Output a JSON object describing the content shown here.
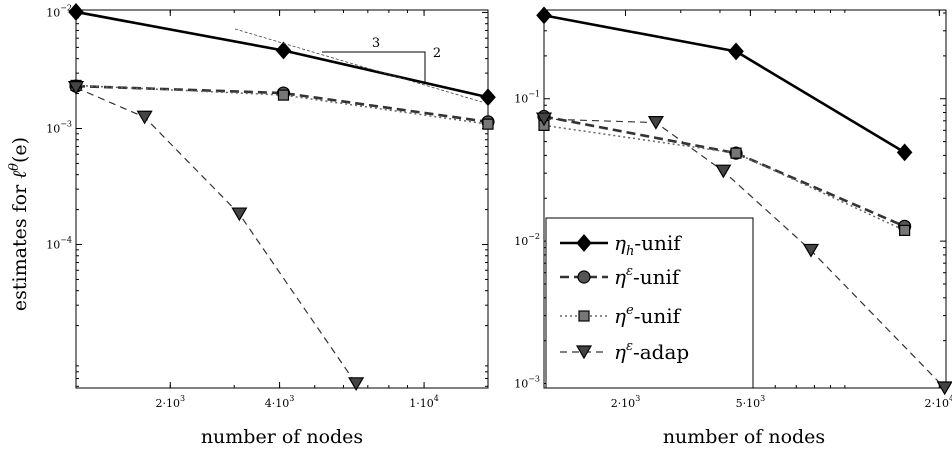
{
  "figure": {
    "ylabel": "estimates for ℓ^θ(e)",
    "ylabel_parts": {
      "prefix": "estimates for ",
      "ell": "ℓ",
      "theta": "θ",
      "suffix": "(e)"
    }
  },
  "legend": [
    {
      "base": "η",
      "sup": "",
      "sub": "h",
      "suffix": "-unif",
      "series": "eta_h_unif"
    },
    {
      "base": "η",
      "sup": "ε",
      "sub": "",
      "suffix": "-unif",
      "series": "eta_eps_unif"
    },
    {
      "base": "η",
      "sup": "e",
      "sub": "",
      "suffix": "-unif",
      "series": "eta_e_unif"
    },
    {
      "base": "η",
      "sup": "ε",
      "sub": "",
      "suffix": "-adap",
      "series": "eta_eps_adap"
    }
  ],
  "slope_triangle": {
    "horizontal_label": "3",
    "vertical_label": "2"
  },
  "series_styles": {
    "eta_h_unif": {
      "color": "#000000",
      "dash": "",
      "marker": "diamond",
      "width": 2.6,
      "fill": "#000000"
    },
    "eta_eps_unif": {
      "color": "#333333",
      "dash": "9,5",
      "marker": "circle",
      "width": 2.6,
      "fill": "#555555"
    },
    "eta_e_unif": {
      "color": "#666666",
      "dash": "2,3",
      "marker": "square",
      "width": 1.5,
      "fill": "#777777"
    },
    "eta_eps_adap": {
      "color": "#333333",
      "dash": "7,5",
      "marker": "triangle-down",
      "width": 1.2,
      "fill": "#444444"
    }
  },
  "chart_data": [
    {
      "type": "line",
      "xscale": "log",
      "yscale": "log",
      "xlabel": "number of nodes",
      "ylabel": "estimates for ℓ^θ(e)",
      "xlim": [
        1100,
        15000
      ],
      "ylim": [
        5.8e-06,
        0.0105
      ],
      "xticks": [
        {
          "value": 2000,
          "label_base": "2·10",
          "label_exp": "3"
        },
        {
          "value": 4000,
          "label_base": "4·10",
          "label_exp": "3"
        },
        {
          "value": 10000,
          "label_base": "1·10",
          "label_exp": "4"
        }
      ],
      "yticks": [
        {
          "value": 0.01,
          "label_base": "10",
          "label_exp": "−2"
        },
        {
          "value": 0.001,
          "label_base": "10",
          "label_exp": "−3"
        },
        {
          "value": 0.0001,
          "label_base": "10",
          "label_exp": "−4"
        }
      ],
      "grid": false,
      "series": [
        {
          "id": "eta_h_unif",
          "name": "η_h-unif",
          "x": [
            1100,
            4100,
            15000
          ],
          "y": [
            0.0101,
            0.0047,
            0.00186
          ]
        },
        {
          "id": "eta_eps_unif",
          "name": "η^ε-unif",
          "x": [
            1100,
            4100,
            15000
          ],
          "y": [
            0.00232,
            0.00202,
            0.00114
          ]
        },
        {
          "id": "eta_e_unif",
          "name": "η^e-unif",
          "x": [
            1100,
            4100,
            15000
          ],
          "y": [
            0.00235,
            0.00194,
            0.00109
          ]
        },
        {
          "id": "eta_eps_adap",
          "name": "η^ε-adap",
          "x": [
            1100,
            1700,
            3100,
            6500
          ],
          "y": [
            0.00225,
            0.00125,
            0.000183,
            6.3e-06
          ]
        }
      ]
    },
    {
      "type": "line",
      "xscale": "log",
      "yscale": "log",
      "xlabel": "number of nodes",
      "ylabel": "",
      "xlim": [
        1100,
        21000
      ],
      "ylim": [
        0.00093,
        0.42
      ],
      "xticks": [
        {
          "value": 2000,
          "label_base": "2·10",
          "label_exp": "3"
        },
        {
          "value": 5000,
          "label_base": "5·10",
          "label_exp": "3"
        },
        {
          "value": 20000,
          "label_base": "2·10",
          "label_exp": "4"
        }
      ],
      "yticks": [
        {
          "value": 0.1,
          "label_base": "10",
          "label_exp": "−1"
        },
        {
          "value": 0.01,
          "label_base": "10",
          "label_exp": "−2"
        },
        {
          "value": 0.001,
          "label_base": "10",
          "label_exp": "−3"
        }
      ],
      "grid": false,
      "series": [
        {
          "id": "eta_h_unif",
          "name": "η_h-unif",
          "x": [
            1100,
            4500,
            15500
          ],
          "y": [
            0.385,
            0.215,
            0.042
          ]
        },
        {
          "id": "eta_eps_unif",
          "name": "η^ε-unif",
          "x": [
            1100,
            4500,
            15500
          ],
          "y": [
            0.075,
            0.0415,
            0.0127
          ]
        },
        {
          "id": "eta_e_unif",
          "name": "η^e-unif",
          "x": [
            1100,
            4500,
            15500
          ],
          "y": [
            0.065,
            0.0415,
            0.0119
          ]
        },
        {
          "id": "eta_eps_adap",
          "name": "η^ε-adap",
          "x": [
            1100,
            2500,
            4100,
            7800,
            20800
          ],
          "y": [
            0.072,
            0.068,
            0.031,
            0.0086,
            0.00093
          ]
        }
      ]
    }
  ]
}
